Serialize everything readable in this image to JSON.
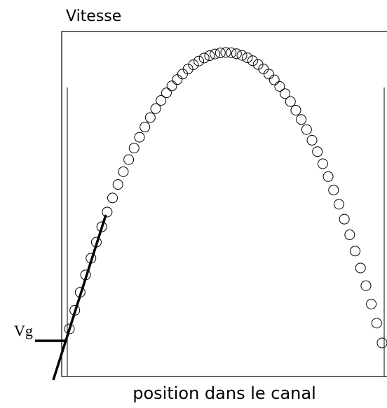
{
  "title": "Vitesse",
  "x_label": "position dans le canal",
  "annotation": "Vg"
}
